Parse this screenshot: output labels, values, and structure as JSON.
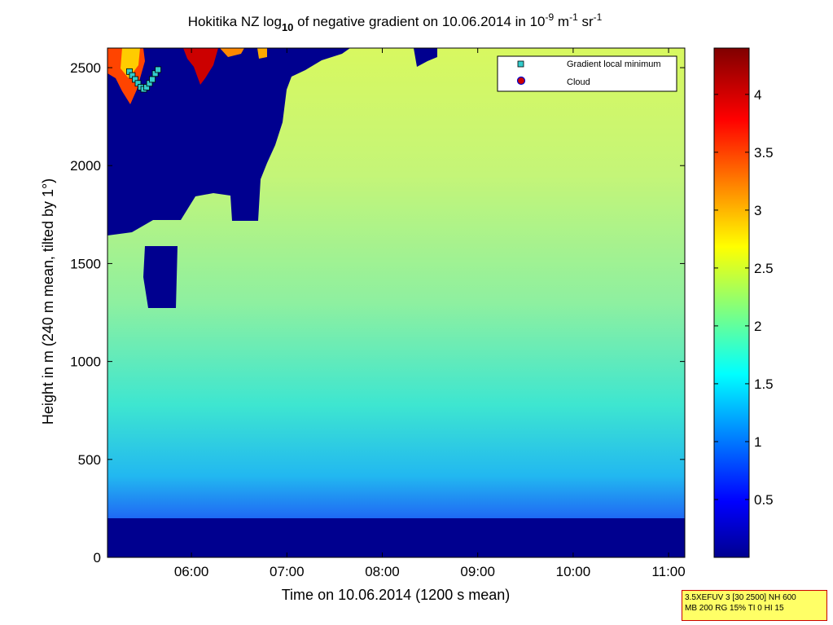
{
  "chart_data": {
    "type": "heatmap",
    "title": {
      "prefix": "Hokitika NZ log",
      "sub": "10",
      "middle": " of negative gradient on 10.06.2014 in 10",
      "sup1": "-9",
      "unit1": " m",
      "sup2": "-1",
      "unit2": " sr",
      "sup3": "-1"
    },
    "xlabel": "Time on 10.06.2014 (1200 s mean)",
    "ylabel": "Height in m (240 m mean, tilted by 1°)",
    "x_ticks": [
      "06:00",
      "07:00",
      "08:00",
      "09:00",
      "10:00",
      "11:00"
    ],
    "x_tick_hours": [
      6,
      7,
      8,
      9,
      10,
      11
    ],
    "xlim_hours": [
      5.12,
      11.17
    ],
    "y_ticks": [
      "0",
      "500",
      "1000",
      "1500",
      "2000",
      "2500"
    ],
    "y_tick_values": [
      0,
      500,
      1000,
      1500,
      2000,
      2500
    ],
    "ylim": [
      0,
      2600
    ],
    "colorbar": {
      "ticks": [
        "0.5",
        "1",
        "1.5",
        "2",
        "2.5",
        "3",
        "3.5",
        "4"
      ],
      "tick_values": [
        0.5,
        1,
        1.5,
        2,
        2.5,
        3,
        3.5,
        4
      ],
      "range": [
        0,
        4.4
      ],
      "colormap": "jet"
    },
    "legend": {
      "placement": "top-right",
      "entries": [
        {
          "label": "Gradient local minimum",
          "marker": "square",
          "color": "#33cccc"
        },
        {
          "label": "Cloud",
          "marker": "circle",
          "color": "#cc0000"
        }
      ]
    },
    "gradient_local_minimum_points": [
      {
        "t": 5.35,
        "h": 2480
      },
      {
        "t": 5.38,
        "h": 2460
      },
      {
        "t": 5.41,
        "h": 2440
      },
      {
        "t": 5.44,
        "h": 2420
      },
      {
        "t": 5.47,
        "h": 2400
      },
      {
        "t": 5.5,
        "h": 2390
      },
      {
        "t": 5.53,
        "h": 2400
      },
      {
        "t": 5.56,
        "h": 2420
      },
      {
        "t": 5.59,
        "h": 2440
      },
      {
        "t": 5.62,
        "h": 2470
      },
      {
        "t": 5.65,
        "h": 2490
      }
    ],
    "cloud_points": []
  },
  "info_box": {
    "line1": "3.5XEFUV 3 [30 2500] NH 600",
    "line2": "MB 200 RG 15% TI 0 HI 15"
  }
}
